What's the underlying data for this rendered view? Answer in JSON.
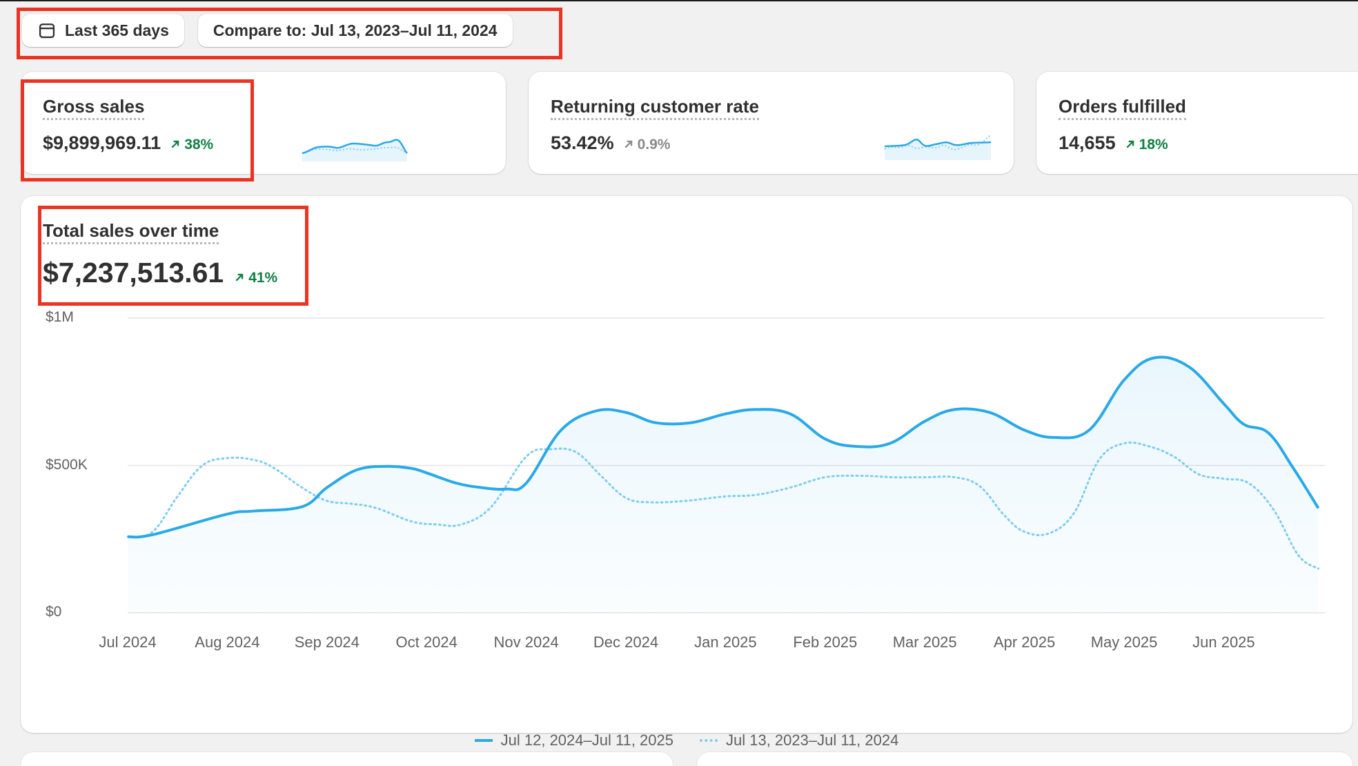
{
  "filters": {
    "date_range_label": "Last 365 days",
    "compare_label": "Compare to: Jul 13, 2023–Jul 11, 2024"
  },
  "metrics": [
    {
      "title": "Gross sales",
      "value": "$9,899,969.11",
      "delta": "38%",
      "trend": "up"
    },
    {
      "title": "Returning customer rate",
      "value": "53.42%",
      "delta": "0.9%",
      "trend": "neutral"
    },
    {
      "title": "Orders fulfilled",
      "value": "14,655",
      "delta": "18%",
      "trend": "up"
    }
  ],
  "sales_chart": {
    "title": "Total sales over time",
    "total": "$7,237,513.61",
    "delta": "41%"
  },
  "colors": {
    "accent": "#29a9e8",
    "comparison": "#7fcdf2",
    "positive": "#108043",
    "annotation": "#ea3323"
  },
  "chart_data": {
    "type": "line",
    "title": "Total sales over time",
    "xlabel": "",
    "ylabel": "",
    "yticks": [
      "$0",
      "$500K",
      "$1M"
    ],
    "ylim": [
      0,
      1000000
    ],
    "categories": [
      "Jul 2024",
      "Aug 2024",
      "Sep 2024",
      "Oct 2024",
      "Nov 2024",
      "Dec 2024",
      "Jan 2025",
      "Feb 2025",
      "Mar 2025",
      "Apr 2025",
      "May 2025",
      "Jun 2025"
    ],
    "grid": true,
    "legend_position": "bottom",
    "series": [
      {
        "name": "Jul 12, 2024–Jul 11, 2025",
        "style": "solid",
        "x": [
          0,
          0.25,
          1,
          1.25,
          1.75,
          2,
          2.3,
          2.6,
          2.85,
          3,
          3.3,
          3.55,
          3.8,
          4,
          4.35,
          4.7,
          5,
          5.3,
          5.65,
          6,
          6.3,
          6.65,
          7,
          7.3,
          7.65,
          8,
          8.3,
          8.65,
          9,
          9.3,
          9.65,
          10,
          10.3,
          10.65,
          11,
          11.2,
          11.45,
          11.7,
          11.95
        ],
        "values": [
          258000,
          265000,
          335000,
          345000,
          360000,
          425000,
          485000,
          497000,
          490000,
          475000,
          440000,
          425000,
          420000,
          440000,
          620000,
          685000,
          680000,
          645000,
          645000,
          675000,
          690000,
          675000,
          590000,
          565000,
          575000,
          650000,
          690000,
          680000,
          620000,
          595000,
          620000,
          790000,
          865000,
          835000,
          710000,
          640000,
          610000,
          490000,
          355000
        ]
      },
      {
        "name": "Jul 13, 2023–Jul 11, 2024",
        "style": "dotted",
        "x": [
          0,
          0.25,
          0.5,
          0.75,
          1,
          1.25,
          1.45,
          1.75,
          2,
          2.25,
          2.5,
          2.85,
          3.1,
          3.35,
          3.65,
          4,
          4.25,
          4.5,
          4.75,
          5,
          5.25,
          5.6,
          6,
          6.3,
          6.65,
          7,
          7.35,
          7.7,
          8,
          8.3,
          8.55,
          8.8,
          9,
          9.25,
          9.5,
          9.75,
          10,
          10.25,
          10.5,
          10.75,
          11,
          11.25,
          11.5,
          11.75,
          11.95
        ],
        "values": [
          258000,
          275000,
          395000,
          500000,
          525000,
          520000,
          495000,
          425000,
          380000,
          370000,
          355000,
          310000,
          300000,
          300000,
          360000,
          530000,
          555000,
          545000,
          465000,
          390000,
          375000,
          380000,
          395000,
          400000,
          425000,
          460000,
          465000,
          460000,
          460000,
          460000,
          430000,
          330000,
          275000,
          270000,
          340000,
          520000,
          575000,
          565000,
          530000,
          470000,
          455000,
          440000,
          350000,
          195000,
          150000
        ]
      }
    ]
  }
}
